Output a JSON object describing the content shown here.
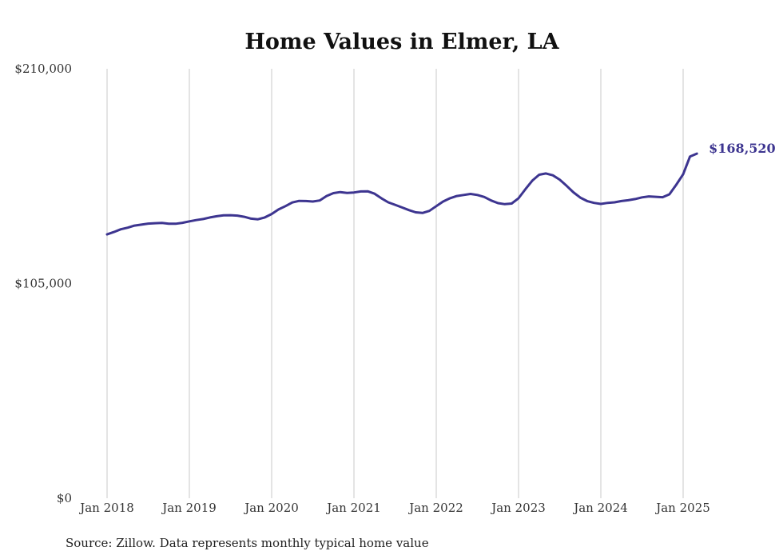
{
  "chart_data": {
    "type": "line",
    "title": "Home Values in Elmer, LA",
    "xlabel": "",
    "ylabel": "",
    "ylim": [
      0,
      210000
    ],
    "y_ticks": [
      {
        "value": 0,
        "label": "$0"
      },
      {
        "value": 105000,
        "label": "$105,000"
      },
      {
        "value": 210000,
        "label": "$210,000"
      }
    ],
    "x_ticks": [
      {
        "value": "2018-01",
        "label": "Jan 2018"
      },
      {
        "value": "2019-01",
        "label": "Jan 2019"
      },
      {
        "value": "2020-01",
        "label": "Jan 2020"
      },
      {
        "value": "2021-01",
        "label": "Jan 2021"
      },
      {
        "value": "2022-01",
        "label": "Jan 2022"
      },
      {
        "value": "2023-01",
        "label": "Jan 2023"
      },
      {
        "value": "2024-01",
        "label": "Jan 2024"
      },
      {
        "value": "2025-01",
        "label": "Jan 2025"
      }
    ],
    "grid": {
      "vertical": true,
      "horizontal": false
    },
    "series": [
      {
        "color": "#3d3590",
        "points": [
          [
            "2018-01",
            129000
          ],
          [
            "2018-02",
            130200
          ],
          [
            "2018-03",
            131500
          ],
          [
            "2018-04",
            132300
          ],
          [
            "2018-05",
            133300
          ],
          [
            "2018-06",
            133800
          ],
          [
            "2018-07",
            134300
          ],
          [
            "2018-08",
            134500
          ],
          [
            "2018-09",
            134600
          ],
          [
            "2018-10",
            134200
          ],
          [
            "2018-11",
            134200
          ],
          [
            "2018-12",
            134700
          ],
          [
            "2019-01",
            135400
          ],
          [
            "2019-02",
            136000
          ],
          [
            "2019-03",
            136500
          ],
          [
            "2019-04",
            137300
          ],
          [
            "2019-05",
            137900
          ],
          [
            "2019-06",
            138300
          ],
          [
            "2019-07",
            138400
          ],
          [
            "2019-08",
            138200
          ],
          [
            "2019-09",
            137600
          ],
          [
            "2019-10",
            136700
          ],
          [
            "2019-11",
            136400
          ],
          [
            "2019-12",
            137300
          ],
          [
            "2020-01",
            139000
          ],
          [
            "2020-02",
            141200
          ],
          [
            "2020-03",
            142800
          ],
          [
            "2020-04",
            144600
          ],
          [
            "2020-05",
            145400
          ],
          [
            "2020-06",
            145300
          ],
          [
            "2020-07",
            145100
          ],
          [
            "2020-08",
            145600
          ],
          [
            "2020-09",
            147800
          ],
          [
            "2020-10",
            149200
          ],
          [
            "2020-11",
            149700
          ],
          [
            "2020-12",
            149300
          ],
          [
            "2021-01",
            149500
          ],
          [
            "2021-02",
            150000
          ],
          [
            "2021-03",
            150100
          ],
          [
            "2021-04",
            148900
          ],
          [
            "2021-05",
            146700
          ],
          [
            "2021-06",
            144700
          ],
          [
            "2021-07",
            143500
          ],
          [
            "2021-08",
            142200
          ],
          [
            "2021-09",
            140900
          ],
          [
            "2021-10",
            139800
          ],
          [
            "2021-11",
            139500
          ],
          [
            "2021-12",
            140500
          ],
          [
            "2022-01",
            142800
          ],
          [
            "2022-02",
            145100
          ],
          [
            "2022-03",
            146700
          ],
          [
            "2022-04",
            147800
          ],
          [
            "2022-05",
            148300
          ],
          [
            "2022-06",
            148800
          ],
          [
            "2022-07",
            148300
          ],
          [
            "2022-08",
            147300
          ],
          [
            "2022-09",
            145600
          ],
          [
            "2022-10",
            144300
          ],
          [
            "2022-11",
            143800
          ],
          [
            "2022-12",
            144100
          ],
          [
            "2023-01",
            146700
          ],
          [
            "2023-02",
            151100
          ],
          [
            "2023-03",
            155300
          ],
          [
            "2023-04",
            158200
          ],
          [
            "2023-05",
            158800
          ],
          [
            "2023-06",
            157900
          ],
          [
            "2023-07",
            155800
          ],
          [
            "2023-08",
            152800
          ],
          [
            "2023-09",
            149600
          ],
          [
            "2023-10",
            147000
          ],
          [
            "2023-11",
            145300
          ],
          [
            "2023-12",
            144400
          ],
          [
            "2024-01",
            143900
          ],
          [
            "2024-02",
            144400
          ],
          [
            "2024-03",
            144700
          ],
          [
            "2024-04",
            145300
          ],
          [
            "2024-05",
            145700
          ],
          [
            "2024-06",
            146300
          ],
          [
            "2024-07",
            147100
          ],
          [
            "2024-08",
            147600
          ],
          [
            "2024-09",
            147400
          ],
          [
            "2024-10",
            147200
          ],
          [
            "2024-11",
            148600
          ],
          [
            "2024-12",
            153300
          ],
          [
            "2025-01",
            158400
          ],
          [
            "2025-02",
            167100
          ],
          [
            "2025-03",
            168520
          ]
        ]
      }
    ],
    "end_label": "$168,520",
    "source": "Source: Zillow. Data represents monthly typical home value"
  }
}
